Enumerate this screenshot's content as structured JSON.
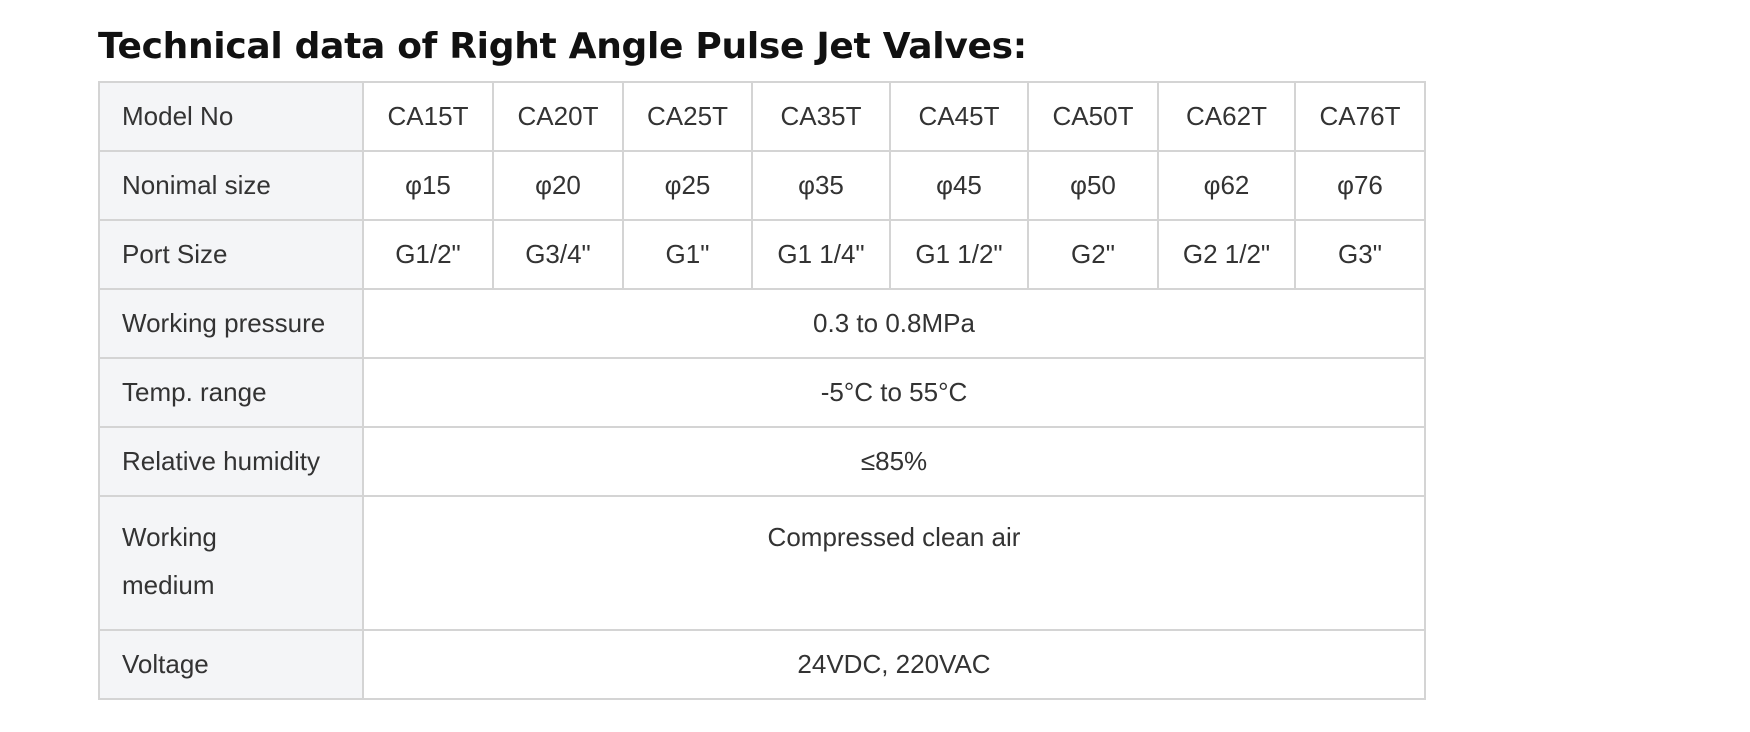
{
  "title": "Technical data of Right Angle Pulse Jet Valves:",
  "table": {
    "rows": [
      {
        "label": "Model No",
        "cells": [
          "CA15T",
          "CA20T",
          "CA25T",
          "CA35T",
          "CA45T",
          "CA50T",
          "CA62T",
          "CA76T"
        ]
      },
      {
        "label": "Nonimal size",
        "cells": [
          "φ15",
          "φ20",
          "φ25",
          "φ35",
          "φ45",
          "φ50",
          "φ62",
          "φ76"
        ]
      },
      {
        "label": "Port Size",
        "cells": [
          "G1/2\"",
          "G3/4\"",
          "G1\"",
          "G1 1/4\"",
          "G1 1/2\"",
          "G2\"",
          "G2 1/2\"",
          "G3\""
        ]
      },
      {
        "label": "Working pressure",
        "cells": [
          "0.3 to 0.8MPa"
        ]
      },
      {
        "label": "Temp. range",
        "cells": [
          "-5°C to 55°C"
        ]
      },
      {
        "label": "Relative humidity",
        "cells": [
          "≤85%"
        ]
      },
      {
        "label": "Working medium",
        "cells": [
          "Compressed clean air"
        ]
      },
      {
        "label": "Voltage",
        "cells": [
          "24VDC, 220VAC"
        ]
      }
    ]
  }
}
